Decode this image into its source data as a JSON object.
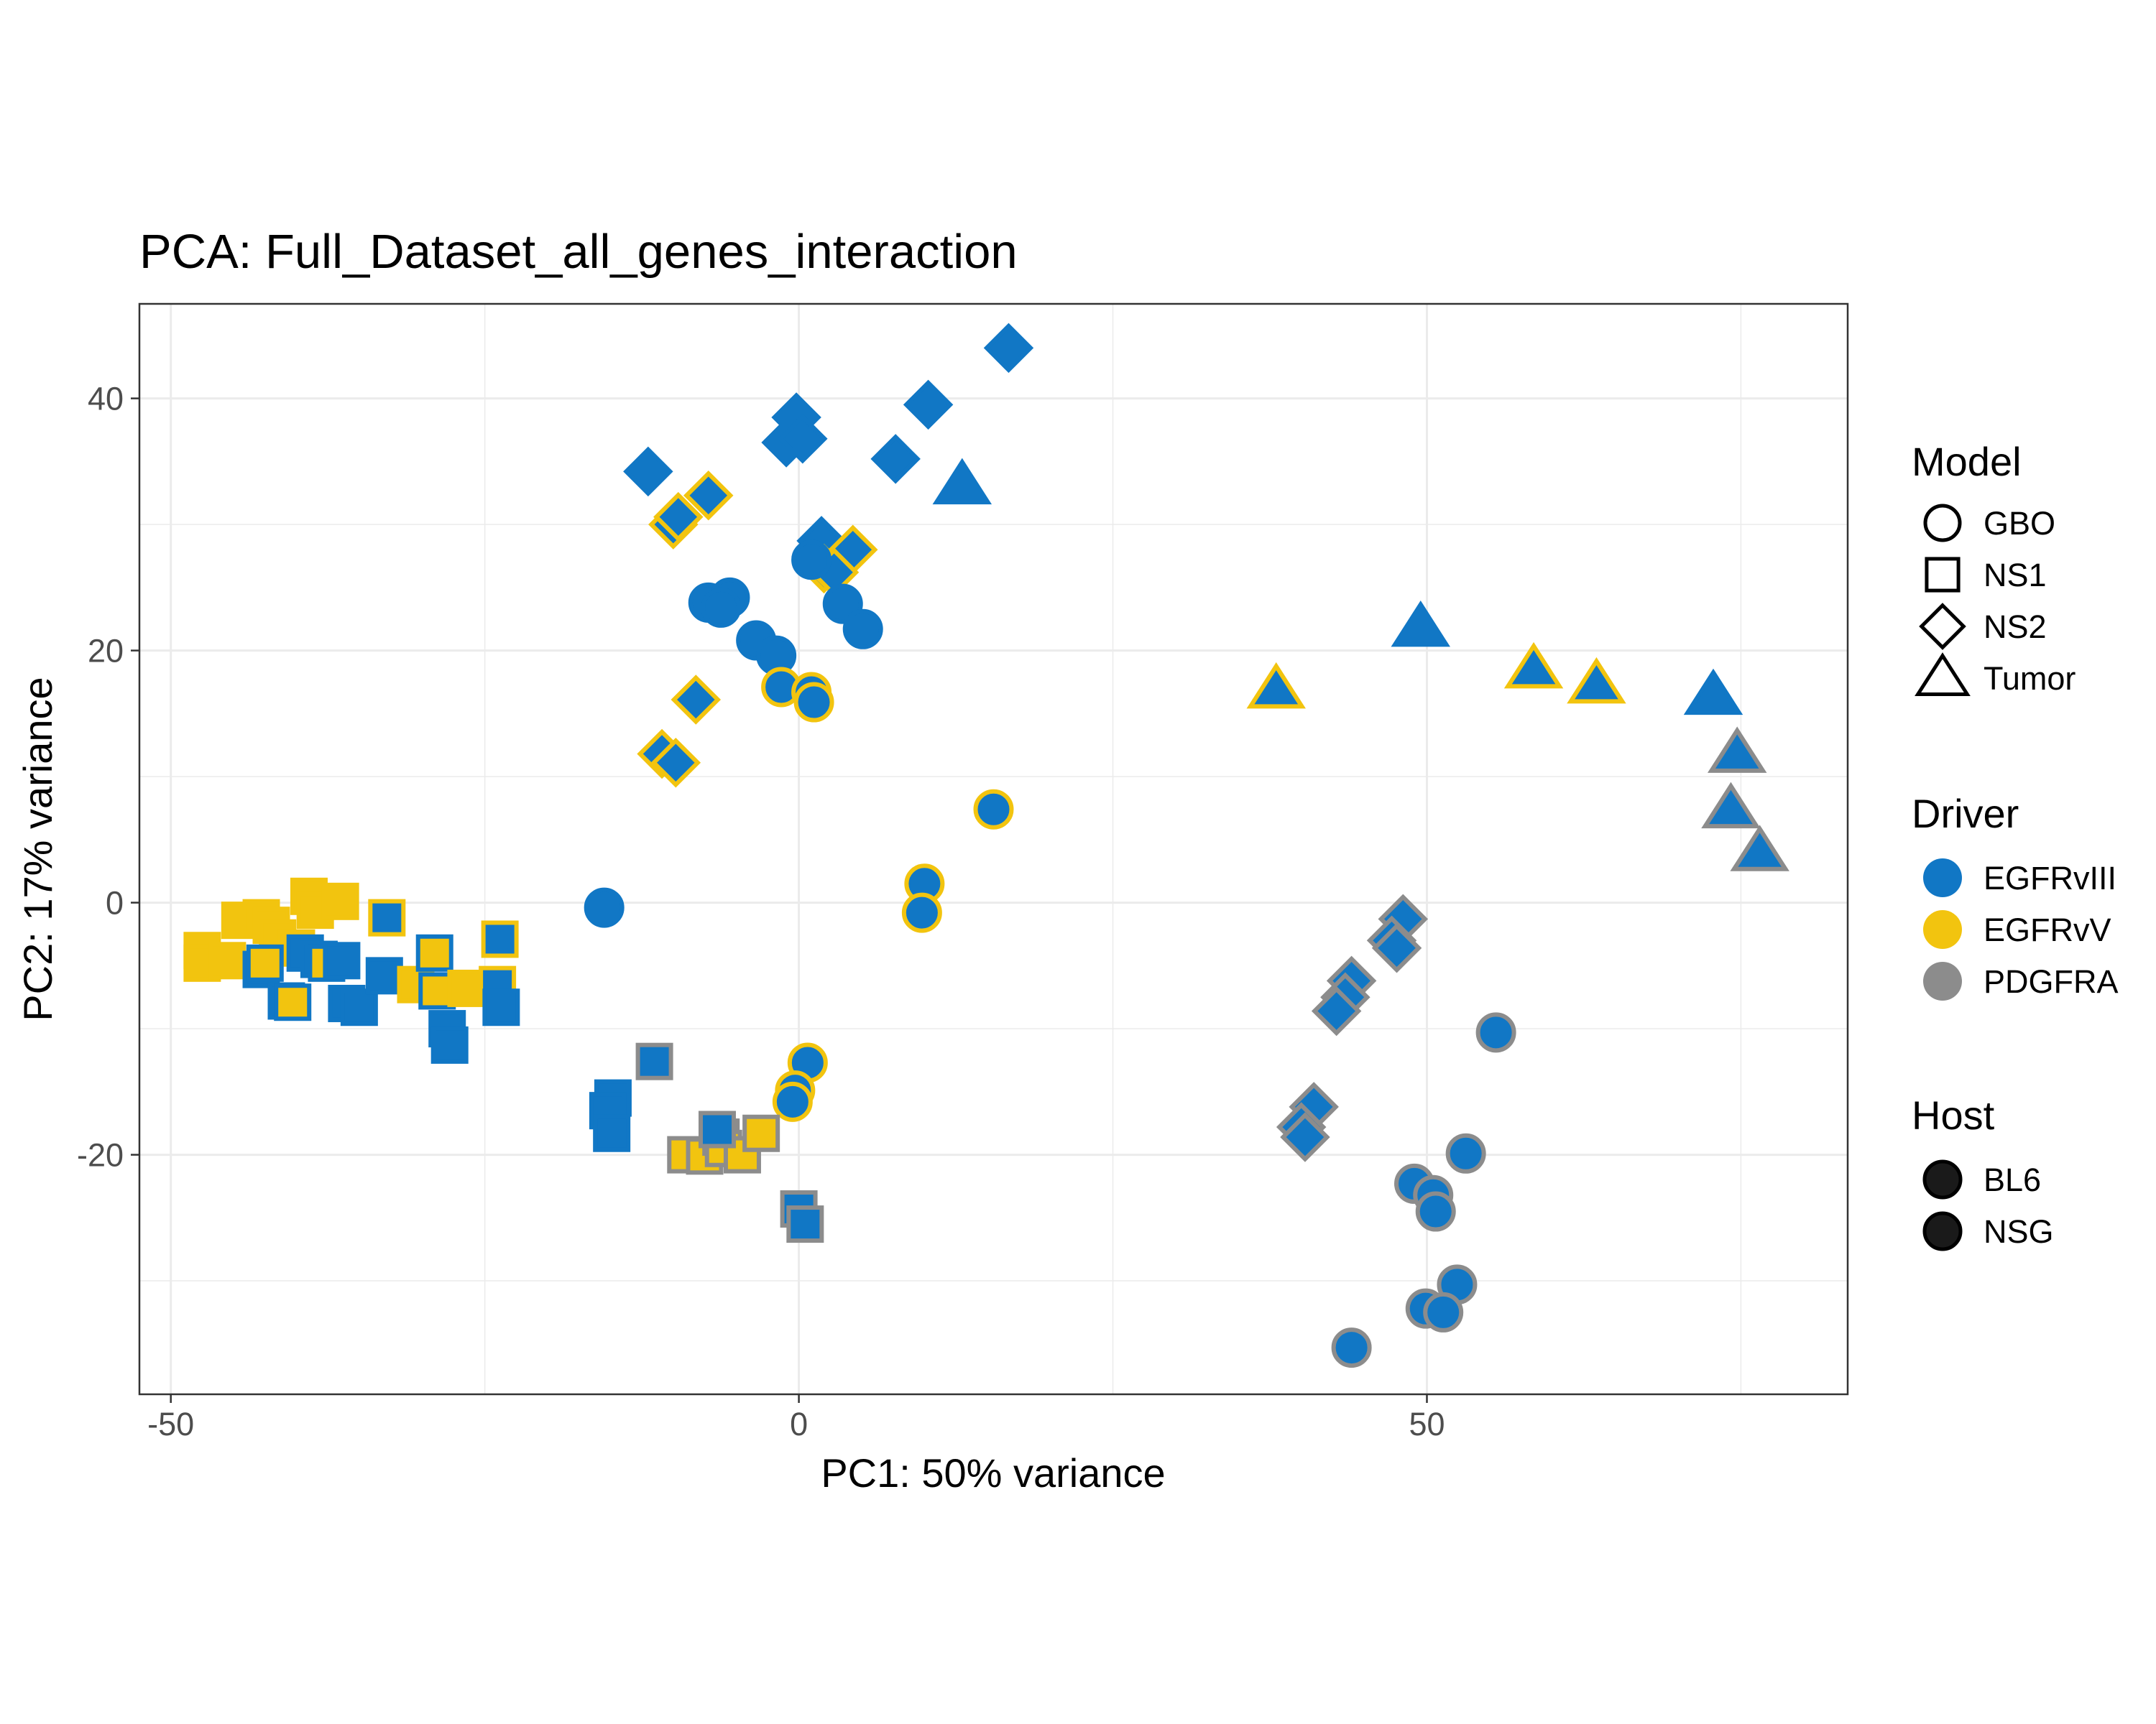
{
  "chart_data": {
    "type": "scatter",
    "title": "PCA: Full_Dataset_all_genes_interaction",
    "xlabel": "PC1: 50% variance",
    "ylabel": "PC2: 17% variance",
    "xlim": [
      -52.5,
      83.5
    ],
    "ylim": [
      -39,
      47.5
    ],
    "x_ticks": [
      -50,
      0,
      50
    ],
    "x_tick_labels": [
      "-50",
      "0",
      "50"
    ],
    "y_ticks": [
      -20,
      0,
      20,
      40
    ],
    "y_tick_labels": [
      "-20",
      "0",
      "20",
      "40"
    ],
    "x_minor_gridlines": [
      -25,
      25,
      75
    ],
    "y_minor_gridlines": [
      -30,
      -10,
      10,
      30
    ],
    "grid": true,
    "legend_position": "right",
    "legends": [
      {
        "title": "Model",
        "items": [
          {
            "label": "GBO",
            "shape": "circle"
          },
          {
            "label": "NS1",
            "shape": "square"
          },
          {
            "label": "NS2",
            "shape": "diamond"
          },
          {
            "label": "Tumor",
            "shape": "triangle"
          }
        ]
      },
      {
        "title": "Driver",
        "items": [
          {
            "label": "EGFRvIII",
            "color": "#1177c5"
          },
          {
            "label": "EGFRvV",
            "color": "#f2c40f"
          },
          {
            "label": "PDGFRA",
            "color": "#8c8c8c"
          }
        ]
      },
      {
        "title": "Host",
        "items": [
          {
            "label": "BL6",
            "stroke": "#000000"
          },
          {
            "label": "NSG",
            "stroke": "#000000"
          }
        ]
      }
    ],
    "colors": {
      "EGFRvIII": "#1177c5",
      "EGFRvV": "#f2c40f",
      "PDGFRA": "#8c8c8c"
    },
    "points": [
      {
        "x": 16.7,
        "y": 44.0,
        "model": "NS2",
        "fill": "EGFRvIII",
        "outline": "EGFRvIII"
      },
      {
        "x": 10.3,
        "y": 39.5,
        "model": "NS2",
        "fill": "EGFRvIII",
        "outline": "EGFRvIII"
      },
      {
        "x": -0.2,
        "y": 38.5,
        "model": "NS2",
        "fill": "EGFRvIII",
        "outline": "EGFRvIII"
      },
      {
        "x": -1.0,
        "y": 36.5,
        "model": "NS2",
        "fill": "EGFRvIII",
        "outline": "EGFRvIII"
      },
      {
        "x": 0.3,
        "y": 36.8,
        "model": "NS2",
        "fill": "EGFRvIII",
        "outline": "EGFRvIII"
      },
      {
        "x": 7.7,
        "y": 35.2,
        "model": "NS2",
        "fill": "EGFRvIII",
        "outline": "EGFRvIII"
      },
      {
        "x": -12.0,
        "y": 34.2,
        "model": "NS2",
        "fill": "EGFRvIII",
        "outline": "EGFRvIII"
      },
      {
        "x": -7.2,
        "y": 32.3,
        "model": "NS2",
        "fill": "EGFRvIII",
        "outline": "EGFRvV"
      },
      {
        "x": -10.0,
        "y": 30.0,
        "model": "NS2",
        "fill": "EGFRvIII",
        "outline": "EGFRvV"
      },
      {
        "x": -9.6,
        "y": 30.6,
        "model": "NS2",
        "fill": "EGFRvIII",
        "outline": "EGFRvV"
      },
      {
        "x": 1.8,
        "y": 28.7,
        "model": "NS2",
        "fill": "EGFRvIII",
        "outline": "EGFRvIII"
      },
      {
        "x": 4.3,
        "y": 28.0,
        "model": "NS2",
        "fill": "EGFRvIII",
        "outline": "EGFRvV"
      },
      {
        "x": 2.0,
        "y": 26.5,
        "model": "NS2",
        "fill": "EGFRvIII",
        "outline": "EGFRvV"
      },
      {
        "x": 2.8,
        "y": 26.2,
        "model": "NS2",
        "fill": "EGFRvIII",
        "outline": "EGFRvV"
      },
      {
        "x": -8.2,
        "y": 16.1,
        "model": "NS2",
        "fill": "EGFRvIII",
        "outline": "EGFRvV"
      },
      {
        "x": -10.9,
        "y": 11.8,
        "model": "NS2",
        "fill": "EGFRvIII",
        "outline": "EGFRvV"
      },
      {
        "x": -9.8,
        "y": 11.1,
        "model": "NS2",
        "fill": "EGFRvIII",
        "outline": "EGFRvV"
      },
      {
        "x": 48.1,
        "y": -1.3,
        "model": "NS2",
        "fill": "EGFRvIII",
        "outline": "PDGFRA"
      },
      {
        "x": 47.2,
        "y": -3.0,
        "model": "NS2",
        "fill": "EGFRvIII",
        "outline": "PDGFRA"
      },
      {
        "x": 47.6,
        "y": -3.6,
        "model": "NS2",
        "fill": "EGFRvIII",
        "outline": "PDGFRA"
      },
      {
        "x": 44.0,
        "y": -6.2,
        "model": "NS2",
        "fill": "EGFRvIII",
        "outline": "PDGFRA"
      },
      {
        "x": 43.5,
        "y": -7.5,
        "model": "NS2",
        "fill": "EGFRvIII",
        "outline": "PDGFRA"
      },
      {
        "x": 42.8,
        "y": -8.6,
        "model": "NS2",
        "fill": "EGFRvIII",
        "outline": "PDGFRA"
      },
      {
        "x": 41.0,
        "y": -16.2,
        "model": "NS2",
        "fill": "EGFRvIII",
        "outline": "PDGFRA"
      },
      {
        "x": 40.0,
        "y": -17.8,
        "model": "NS2",
        "fill": "EGFRvIII",
        "outline": "PDGFRA"
      },
      {
        "x": 40.3,
        "y": -18.6,
        "model": "NS2",
        "fill": "EGFRvIII",
        "outline": "PDGFRA"
      },
      {
        "x": 13.0,
        "y": 33.1,
        "model": "Tumor",
        "fill": "EGFRvIII",
        "outline": "EGFRvIII"
      },
      {
        "x": 49.5,
        "y": 21.8,
        "model": "Tumor",
        "fill": "EGFRvIII",
        "outline": "EGFRvIII"
      },
      {
        "x": 38.0,
        "y": 16.9,
        "model": "Tumor",
        "fill": "EGFRvIII",
        "outline": "EGFRvV"
      },
      {
        "x": 58.5,
        "y": 18.5,
        "model": "Tumor",
        "fill": "EGFRvIII",
        "outline": "EGFRvV"
      },
      {
        "x": 63.5,
        "y": 17.3,
        "model": "Tumor",
        "fill": "EGFRvIII",
        "outline": "EGFRvV"
      },
      {
        "x": 72.8,
        "y": 16.4,
        "model": "Tumor",
        "fill": "EGFRvIII",
        "outline": "EGFRvIII"
      },
      {
        "x": 74.7,
        "y": 11.8,
        "model": "Tumor",
        "fill": "EGFRvIII",
        "outline": "PDGFRA"
      },
      {
        "x": 74.2,
        "y": 7.4,
        "model": "Tumor",
        "fill": "EGFRvIII",
        "outline": "PDGFRA"
      },
      {
        "x": 76.5,
        "y": 4.0,
        "model": "Tumor",
        "fill": "EGFRvIII",
        "outline": "PDGFRA"
      },
      {
        "x": -7.2,
        "y": 23.8,
        "model": "GBO",
        "fill": "EGFRvIII",
        "outline": "EGFRvIII"
      },
      {
        "x": -5.5,
        "y": 24.2,
        "model": "GBO",
        "fill": "EGFRvIII",
        "outline": "EGFRvIII"
      },
      {
        "x": -6.2,
        "y": 23.4,
        "model": "GBO",
        "fill": "EGFRvIII",
        "outline": "EGFRvIII"
      },
      {
        "x": 1.0,
        "y": 27.2,
        "model": "GBO",
        "fill": "EGFRvIII",
        "outline": "EGFRvIII"
      },
      {
        "x": 3.5,
        "y": 23.7,
        "model": "GBO",
        "fill": "EGFRvIII",
        "outline": "EGFRvIII"
      },
      {
        "x": 5.1,
        "y": 21.7,
        "model": "GBO",
        "fill": "EGFRvIII",
        "outline": "EGFRvIII"
      },
      {
        "x": -3.4,
        "y": 20.8,
        "model": "GBO",
        "fill": "EGFRvIII",
        "outline": "EGFRvIII"
      },
      {
        "x": -1.8,
        "y": 19.6,
        "model": "GBO",
        "fill": "EGFRvIII",
        "outline": "EGFRvIII"
      },
      {
        "x": -1.4,
        "y": 17.1,
        "model": "GBO",
        "fill": "EGFRvIII",
        "outline": "EGFRvV"
      },
      {
        "x": 1.0,
        "y": 16.7,
        "model": "GBO",
        "fill": "EGFRvIII",
        "outline": "EGFRvV"
      },
      {
        "x": 1.2,
        "y": 15.9,
        "model": "GBO",
        "fill": "EGFRvIII",
        "outline": "EGFRvV"
      },
      {
        "x": 15.5,
        "y": 7.4,
        "model": "GBO",
        "fill": "EGFRvIII",
        "outline": "EGFRvV"
      },
      {
        "x": 10.0,
        "y": 1.5,
        "model": "GBO",
        "fill": "EGFRvIII",
        "outline": "EGFRvV"
      },
      {
        "x": 9.8,
        "y": -0.8,
        "model": "GBO",
        "fill": "EGFRvIII",
        "outline": "EGFRvV"
      },
      {
        "x": -15.5,
        "y": -0.4,
        "model": "GBO",
        "fill": "EGFRvIII",
        "outline": "EGFRvIII"
      },
      {
        "x": 0.7,
        "y": -12.7,
        "model": "GBO",
        "fill": "EGFRvIII",
        "outline": "EGFRvV"
      },
      {
        "x": -0.3,
        "y": -14.9,
        "model": "GBO",
        "fill": "EGFRvIII",
        "outline": "EGFRvV"
      },
      {
        "x": -0.5,
        "y": -15.8,
        "model": "GBO",
        "fill": "EGFRvIII",
        "outline": "EGFRvV"
      },
      {
        "x": 55.5,
        "y": -10.3,
        "model": "GBO",
        "fill": "EGFRvIII",
        "outline": "PDGFRA"
      },
      {
        "x": 53.1,
        "y": -19.9,
        "model": "GBO",
        "fill": "EGFRvIII",
        "outline": "PDGFRA"
      },
      {
        "x": 49.0,
        "y": -22.3,
        "model": "GBO",
        "fill": "EGFRvIII",
        "outline": "PDGFRA"
      },
      {
        "x": 50.5,
        "y": -23.2,
        "model": "GBO",
        "fill": "EGFRvIII",
        "outline": "PDGFRA"
      },
      {
        "x": 50.7,
        "y": -24.5,
        "model": "GBO",
        "fill": "EGFRvIII",
        "outline": "PDGFRA"
      },
      {
        "x": 52.4,
        "y": -30.3,
        "model": "GBO",
        "fill": "EGFRvIII",
        "outline": "PDGFRA"
      },
      {
        "x": 49.9,
        "y": -32.2,
        "model": "GBO",
        "fill": "EGFRvIII",
        "outline": "PDGFRA"
      },
      {
        "x": 51.3,
        "y": -32.5,
        "model": "GBO",
        "fill": "EGFRvIII",
        "outline": "PDGFRA"
      },
      {
        "x": 44.0,
        "y": -35.3,
        "model": "GBO",
        "fill": "EGFRvIII",
        "outline": "PDGFRA"
      },
      {
        "x": -47.5,
        "y": -3.8,
        "model": "NS1",
        "fill": "EGFRvV",
        "outline": "EGFRvV"
      },
      {
        "x": -47.5,
        "y": -4.8,
        "model": "NS1",
        "fill": "EGFRvV",
        "outline": "EGFRvV"
      },
      {
        "x": -45.5,
        "y": -4.6,
        "model": "NS1",
        "fill": "EGFRvV",
        "outline": "EGFRvV"
      },
      {
        "x": -44.5,
        "y": -1.4,
        "model": "NS1",
        "fill": "EGFRvV",
        "outline": "EGFRvV"
      },
      {
        "x": -42.8,
        "y": -1.2,
        "model": "NS1",
        "fill": "EGFRvV",
        "outline": "EGFRvV"
      },
      {
        "x": -42.0,
        "y": -1.8,
        "model": "NS1",
        "fill": "EGFRvV",
        "outline": "EGFRvV"
      },
      {
        "x": -41.5,
        "y": -2.8,
        "model": "NS1",
        "fill": "EGFRvV",
        "outline": "EGFRvV"
      },
      {
        "x": -39.0,
        "y": 0.5,
        "model": "NS1",
        "fill": "EGFRvV",
        "outline": "EGFRvV"
      },
      {
        "x": -38.5,
        "y": -0.6,
        "model": "NS1",
        "fill": "EGFRvV",
        "outline": "EGFRvV"
      },
      {
        "x": -36.5,
        "y": 0.1,
        "model": "NS1",
        "fill": "EGFRvV",
        "outline": "EGFRvV"
      },
      {
        "x": -40.0,
        "y": -3.6,
        "model": "NS1",
        "fill": "EGFRvV",
        "outline": "EGFRvV"
      },
      {
        "x": -42.8,
        "y": -5.3,
        "model": "NS1",
        "fill": "EGFRvIII",
        "outline": "EGFRvIII"
      },
      {
        "x": -42.5,
        "y": -4.8,
        "model": "NS1",
        "fill": "EGFRvV",
        "outline": "EGFRvIII"
      },
      {
        "x": -40.8,
        "y": -7.8,
        "model": "NS1",
        "fill": "EGFRvIII",
        "outline": "EGFRvIII"
      },
      {
        "x": -40.3,
        "y": -7.9,
        "model": "NS1",
        "fill": "EGFRvV",
        "outline": "EGFRvIII"
      },
      {
        "x": -39.3,
        "y": -4.0,
        "model": "NS1",
        "fill": "EGFRvIII",
        "outline": "EGFRvIII"
      },
      {
        "x": -38.2,
        "y": -4.5,
        "model": "NS1",
        "fill": "EGFRvIII",
        "outline": "EGFRvIII"
      },
      {
        "x": -37.6,
        "y": -4.8,
        "model": "NS1",
        "fill": "EGFRvV",
        "outline": "EGFRvIII"
      },
      {
        "x": -36.4,
        "y": -4.6,
        "model": "NS1",
        "fill": "EGFRvIII",
        "outline": "EGFRvIII"
      },
      {
        "x": -36.0,
        "y": -8.0,
        "model": "NS1",
        "fill": "EGFRvIII",
        "outline": "EGFRvIII"
      },
      {
        "x": -35.0,
        "y": -8.3,
        "model": "NS1",
        "fill": "EGFRvIII",
        "outline": "EGFRvIII"
      },
      {
        "x": -33.0,
        "y": -5.8,
        "model": "NS1",
        "fill": "EGFRvIII",
        "outline": "EGFRvIII"
      },
      {
        "x": -32.8,
        "y": -1.2,
        "model": "NS1",
        "fill": "EGFRvIII",
        "outline": "EGFRvV"
      },
      {
        "x": -30.5,
        "y": -6.5,
        "model": "NS1",
        "fill": "EGFRvV",
        "outline": "EGFRvV"
      },
      {
        "x": -29.0,
        "y": -4.0,
        "model": "NS1",
        "fill": "EGFRvV",
        "outline": "EGFRvIII"
      },
      {
        "x": -28.8,
        "y": -7.0,
        "model": "NS1",
        "fill": "EGFRvV",
        "outline": "EGFRvIII"
      },
      {
        "x": -28.0,
        "y": -10.0,
        "model": "NS1",
        "fill": "EGFRvIII",
        "outline": "EGFRvIII"
      },
      {
        "x": -27.8,
        "y": -11.3,
        "model": "NS1",
        "fill": "EGFRvIII",
        "outline": "EGFRvIII"
      },
      {
        "x": -26.5,
        "y": -6.8,
        "model": "NS1",
        "fill": "EGFRvV",
        "outline": "EGFRvV"
      },
      {
        "x": -24.0,
        "y": -6.5,
        "model": "NS1",
        "fill": "EGFRvIII",
        "outline": "EGFRvV"
      },
      {
        "x": -23.8,
        "y": -2.9,
        "model": "NS1",
        "fill": "EGFRvIII",
        "outline": "EGFRvV"
      },
      {
        "x": -23.7,
        "y": -8.3,
        "model": "NS1",
        "fill": "EGFRvIII",
        "outline": "EGFRvIII"
      },
      {
        "x": -11.5,
        "y": -12.6,
        "model": "NS1",
        "fill": "EGFRvIII",
        "outline": "PDGFRA"
      },
      {
        "x": -14.8,
        "y": -15.5,
        "model": "NS1",
        "fill": "EGFRvIII",
        "outline": "EGFRvIII"
      },
      {
        "x": -15.2,
        "y": -16.5,
        "model": "NS1",
        "fill": "EGFRvIII",
        "outline": "EGFRvIII"
      },
      {
        "x": -14.9,
        "y": -18.3,
        "model": "NS1",
        "fill": "EGFRvIII",
        "outline": "EGFRvIII"
      },
      {
        "x": -9.0,
        "y": -20.0,
        "model": "NS1",
        "fill": "EGFRvV",
        "outline": "PDGFRA"
      },
      {
        "x": -7.5,
        "y": -20.1,
        "model": "NS1",
        "fill": "EGFRvV",
        "outline": "PDGFRA"
      },
      {
        "x": -6.2,
        "y": -18.6,
        "model": "NS1",
        "fill": "EGFRvIII",
        "outline": "PDGFRA"
      },
      {
        "x": -6.0,
        "y": -19.5,
        "model": "NS1",
        "fill": "EGFRvV",
        "outline": "PDGFRA"
      },
      {
        "x": -4.5,
        "y": -20.0,
        "model": "NS1",
        "fill": "EGFRvV",
        "outline": "PDGFRA"
      },
      {
        "x": -3.0,
        "y": -18.3,
        "model": "NS1",
        "fill": "EGFRvV",
        "outline": "PDGFRA"
      },
      {
        "x": -6.5,
        "y": -18.0,
        "model": "NS1",
        "fill": "EGFRvIII",
        "outline": "PDGFRA"
      },
      {
        "x": 0.0,
        "y": -24.3,
        "model": "NS1",
        "fill": "EGFRvIII",
        "outline": "PDGFRA"
      },
      {
        "x": 0.5,
        "y": -25.5,
        "model": "NS1",
        "fill": "EGFRvIII",
        "outline": "PDGFRA"
      }
    ]
  }
}
